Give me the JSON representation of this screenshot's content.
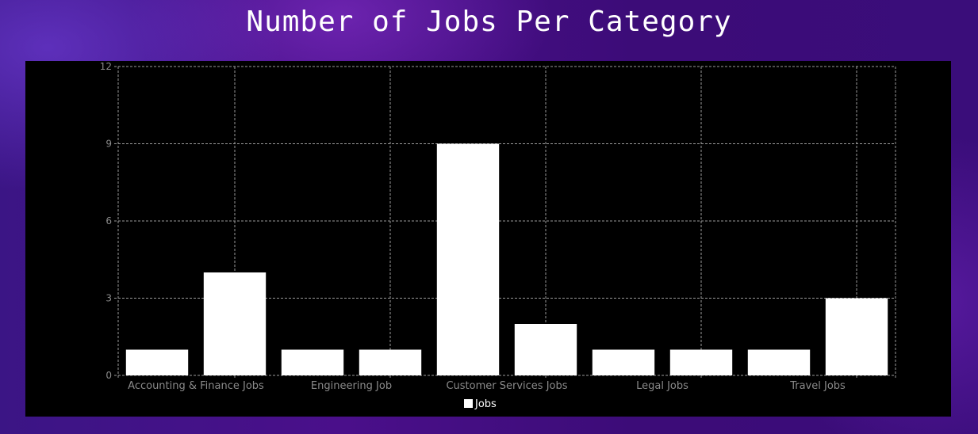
{
  "page": {
    "title": "Number of Jobs Per Category"
  },
  "chart_data": {
    "type": "bar",
    "title": "Number of Jobs Per Category",
    "xlabel": "",
    "ylabel": "",
    "ylim": [
      0,
      12
    ],
    "yticks": [
      0,
      3,
      6,
      9,
      12
    ],
    "grid": true,
    "legend_position": "bottom-center",
    "categories": [
      "",
      "Accounting & Finance Jobs",
      "",
      "Engineering Job",
      "",
      "Customer Services Jobs",
      "",
      "Legal Jobs",
      "",
      "Travel Jobs"
    ],
    "series": [
      {
        "name": "Jobs",
        "values": [
          1,
          4,
          1,
          1,
          9,
          2,
          1,
          1,
          1,
          3
        ],
        "color": "#ffffff"
      }
    ],
    "colors": {
      "background": "#000000",
      "bar": "#ffffff",
      "grid": "#9a9a9a",
      "axis_text": "#8a8a8a"
    }
  }
}
